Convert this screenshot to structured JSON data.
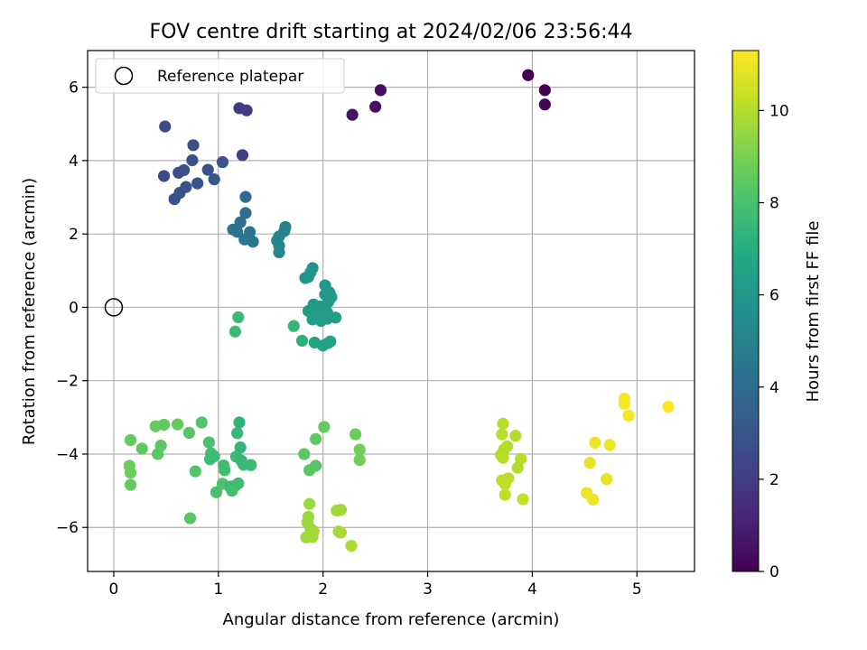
{
  "chart_data": {
    "type": "scatter",
    "title": "FOV centre drift starting at 2024/02/06 23:56:44",
    "xlabel": "Angular distance from reference (arcmin)",
    "ylabel": "Rotation from reference (arcmin)",
    "xlim": [
      -0.25,
      5.55
    ],
    "ylim": [
      -7.2,
      7.0
    ],
    "xticks": [
      0,
      1,
      2,
      3,
      4,
      5
    ],
    "yticks": [
      -6,
      -4,
      -2,
      0,
      2,
      4,
      6
    ],
    "ytick_labels": [
      "−6",
      "−4",
      "−2",
      "0",
      "2",
      "4",
      "6"
    ],
    "grid": true,
    "legend": {
      "position": "top-left",
      "entries": [
        {
          "label": "Reference platepar",
          "marker": "open-circle",
          "color": "#000000"
        }
      ]
    },
    "reference": {
      "x": 0,
      "y": 0
    },
    "colorbar": {
      "label": "Hours from first FF file",
      "range": [
        0,
        11.3
      ],
      "ticks": [
        0,
        2,
        4,
        6,
        8,
        10
      ],
      "colormap": "viridis"
    },
    "series": [
      {
        "values": [
          [
            3.96,
            6.33,
            0.0
          ],
          [
            4.12,
            5.92,
            0.1
          ],
          [
            4.12,
            5.53,
            0.2
          ],
          [
            2.55,
            5.92,
            0.4
          ],
          [
            2.5,
            5.47,
            0.5
          ],
          [
            2.28,
            5.25,
            0.6
          ],
          [
            1.2,
            5.43,
            1.9
          ],
          [
            1.27,
            5.37,
            2.0
          ],
          [
            1.23,
            4.15,
            2.2
          ],
          [
            0.49,
            4.93,
            2.6
          ],
          [
            0.76,
            4.42,
            2.7
          ],
          [
            1.04,
            3.96,
            2.9
          ],
          [
            0.75,
            4.01,
            2.8
          ],
          [
            0.9,
            3.75,
            2.8
          ],
          [
            0.48,
            3.58,
            2.6
          ],
          [
            0.67,
            3.74,
            2.7
          ],
          [
            0.62,
            3.67,
            2.7
          ],
          [
            0.96,
            3.49,
            3.0
          ],
          [
            0.8,
            3.38,
            2.9
          ],
          [
            0.69,
            3.28,
            2.9
          ],
          [
            0.63,
            3.12,
            2.8
          ],
          [
            0.58,
            2.95,
            2.8
          ],
          [
            1.26,
            3.01,
            3.8
          ],
          [
            1.26,
            2.57,
            4.0
          ],
          [
            1.21,
            2.32,
            4.1
          ],
          [
            1.14,
            2.12,
            4.3
          ],
          [
            1.18,
            2.06,
            4.3
          ],
          [
            1.3,
            2.05,
            4.3
          ],
          [
            1.25,
            1.85,
            4.4
          ],
          [
            1.33,
            1.79,
            4.5
          ],
          [
            1.64,
            2.19,
            4.9
          ],
          [
            1.63,
            2.08,
            5.0
          ],
          [
            1.58,
            1.93,
            5.0
          ],
          [
            1.56,
            1.82,
            5.1
          ],
          [
            1.58,
            1.68,
            5.1
          ],
          [
            1.58,
            1.5,
            5.2
          ],
          [
            1.9,
            1.07,
            5.8
          ],
          [
            1.88,
            0.95,
            5.9
          ],
          [
            1.83,
            0.8,
            5.9
          ],
          [
            1.86,
            0.83,
            5.9
          ],
          [
            2.02,
            0.6,
            6.0
          ],
          [
            2.06,
            0.41,
            6.0
          ],
          [
            2.02,
            0.35,
            6.1
          ],
          [
            2.08,
            0.28,
            6.1
          ],
          [
            2.05,
            0.15,
            6.1
          ],
          [
            1.91,
            0.08,
            6.1
          ],
          [
            1.97,
            0.03,
            6.2
          ],
          [
            2.0,
            -0.05,
            6.2
          ],
          [
            1.86,
            -0.1,
            6.2
          ],
          [
            1.94,
            -0.18,
            6.2
          ],
          [
            2.04,
            -0.14,
            6.2
          ],
          [
            2.12,
            -0.28,
            6.3
          ],
          [
            2.04,
            -0.31,
            6.3
          ],
          [
            1.9,
            -0.33,
            6.3
          ],
          [
            1.98,
            -0.37,
            6.3
          ],
          [
            2.07,
            -0.93,
            6.5
          ],
          [
            2.05,
            -0.97,
            6.5
          ],
          [
            1.92,
            -0.96,
            6.6
          ],
          [
            2.0,
            -1.04,
            6.6
          ],
          [
            1.72,
            -0.51,
            7.4
          ],
          [
            1.8,
            -0.91,
            7.2
          ],
          [
            1.19,
            -0.27,
            7.6
          ],
          [
            1.16,
            -0.66,
            7.6
          ],
          [
            0.16,
            -3.62,
            8.6
          ],
          [
            0.27,
            -3.85,
            8.5
          ],
          [
            0.15,
            -4.32,
            8.7
          ],
          [
            0.16,
            -4.51,
            8.7
          ],
          [
            0.16,
            -4.84,
            8.6
          ],
          [
            0.4,
            -3.24,
            8.6
          ],
          [
            0.48,
            -3.2,
            8.5
          ],
          [
            0.61,
            -3.19,
            8.6
          ],
          [
            0.45,
            -3.77,
            8.4
          ],
          [
            0.42,
            -4.0,
            8.4
          ],
          [
            0.72,
            -3.42,
            8.3
          ],
          [
            0.84,
            -3.14,
            8.2
          ],
          [
            0.78,
            -4.47,
            8.2
          ],
          [
            0.73,
            -5.75,
            8.3
          ],
          [
            0.91,
            -3.68,
            8.0
          ],
          [
            0.93,
            -3.98,
            7.8
          ],
          [
            0.96,
            -4.06,
            7.7
          ],
          [
            0.92,
            -4.14,
            7.7
          ],
          [
            0.98,
            -5.04,
            8.0
          ],
          [
            1.05,
            -4.31,
            7.8
          ],
          [
            1.06,
            -4.44,
            7.8
          ],
          [
            1.04,
            -4.81,
            8.1
          ],
          [
            1.11,
            -4.89,
            7.7
          ],
          [
            1.16,
            -4.86,
            7.6
          ],
          [
            1.13,
            -5.0,
            7.9
          ],
          [
            1.19,
            -4.8,
            7.8
          ],
          [
            1.2,
            -3.14,
            7.3
          ],
          [
            1.18,
            -3.43,
            7.5
          ],
          [
            1.21,
            -3.82,
            7.3
          ],
          [
            1.17,
            -4.07,
            7.6
          ],
          [
            1.22,
            -4.18,
            7.4
          ],
          [
            1.24,
            -4.29,
            7.6
          ],
          [
            1.31,
            -4.3,
            7.6
          ],
          [
            1.82,
            -4.0,
            8.4
          ],
          [
            1.87,
            -4.44,
            8.4
          ],
          [
            1.93,
            -4.32,
            8.3
          ],
          [
            1.93,
            -3.59,
            8.5
          ],
          [
            2.01,
            -3.26,
            8.6
          ],
          [
            2.31,
            -3.46,
            8.7
          ],
          [
            2.35,
            -3.88,
            8.8
          ],
          [
            2.35,
            -4.16,
            8.8
          ],
          [
            1.87,
            -5.36,
            9.6
          ],
          [
            1.86,
            -5.71,
            9.6
          ],
          [
            1.85,
            -5.86,
            9.6
          ],
          [
            1.88,
            -6.03,
            9.6
          ],
          [
            1.91,
            -6.1,
            9.7
          ],
          [
            1.84,
            -6.27,
            9.7
          ],
          [
            1.9,
            -6.26,
            9.7
          ],
          [
            2.13,
            -5.54,
            9.7
          ],
          [
            2.17,
            -5.52,
            9.7
          ],
          [
            2.15,
            -6.11,
            9.8
          ],
          [
            2.17,
            -6.14,
            9.8
          ],
          [
            2.27,
            -6.5,
            9.9
          ],
          [
            3.72,
            -3.17,
            10.1
          ],
          [
            3.71,
            -3.46,
            10.1
          ],
          [
            3.84,
            -3.5,
            10.0
          ],
          [
            3.76,
            -3.79,
            10.0
          ],
          [
            3.73,
            -3.87,
            10.0
          ],
          [
            3.7,
            -4.02,
            10.0
          ],
          [
            3.72,
            -4.1,
            10.1
          ],
          [
            3.89,
            -4.13,
            10.1
          ],
          [
            3.86,
            -4.37,
            10.0
          ],
          [
            3.71,
            -4.72,
            10.2
          ],
          [
            3.77,
            -4.66,
            10.1
          ],
          [
            3.74,
            -4.82,
            10.2
          ],
          [
            3.74,
            -5.11,
            10.2
          ],
          [
            3.91,
            -5.23,
            10.3
          ],
          [
            4.6,
            -3.69,
            11.0
          ],
          [
            4.74,
            -3.75,
            11.0
          ],
          [
            4.55,
            -4.24,
            10.9
          ],
          [
            4.71,
            -4.68,
            10.9
          ],
          [
            4.52,
            -5.06,
            11.0
          ],
          [
            4.58,
            -5.24,
            11.0
          ],
          [
            4.88,
            -2.49,
            11.2
          ],
          [
            4.88,
            -2.63,
            11.2
          ],
          [
            4.92,
            -2.95,
            11.1
          ],
          [
            5.3,
            -2.71,
            11.3
          ]
        ]
      }
    ]
  }
}
